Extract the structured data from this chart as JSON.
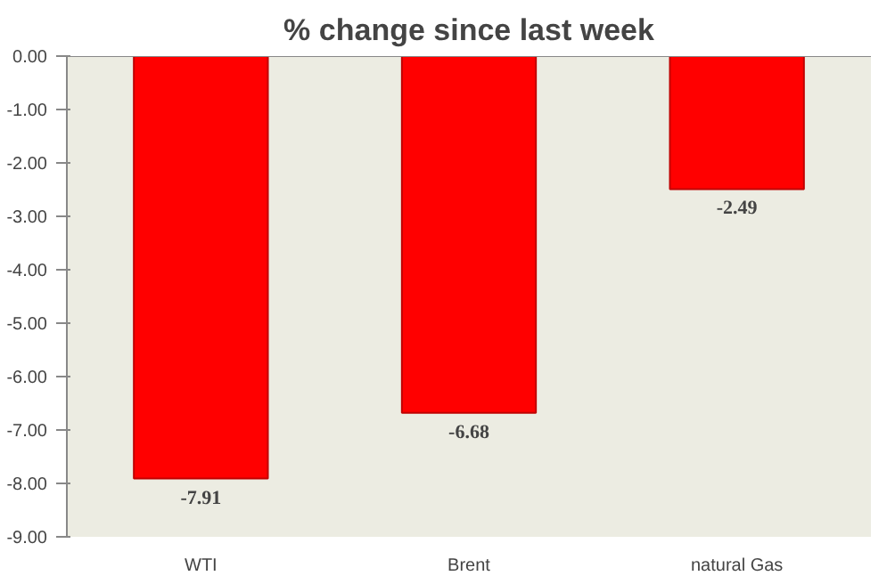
{
  "chart_data": {
    "type": "bar",
    "title": "% change since last week",
    "categories": [
      "WTI",
      "Brent",
      "natural Gas"
    ],
    "values": [
      -7.91,
      -6.68,
      -2.49
    ],
    "color": "#ff0000",
    "ylim": [
      -9,
      0
    ],
    "yticks": [
      {
        "value": 0,
        "label": "0.00"
      },
      {
        "value": -1,
        "label": "-1.00"
      },
      {
        "value": -2,
        "label": "-2.00"
      },
      {
        "value": -3,
        "label": "-3.00"
      },
      {
        "value": -4,
        "label": "-4.00"
      },
      {
        "value": -5,
        "label": "-5.00"
      },
      {
        "value": -6,
        "label": "-6.00"
      },
      {
        "value": -7,
        "label": "-7.00"
      },
      {
        "value": -8,
        "label": "-8.00"
      },
      {
        "value": -9,
        "label": "-9.00"
      }
    ],
    "data_labels": true
  }
}
